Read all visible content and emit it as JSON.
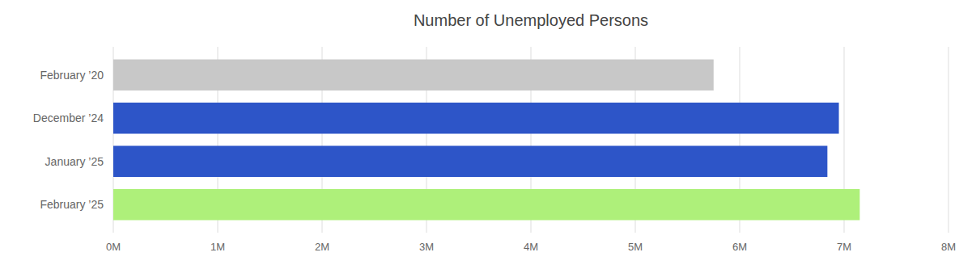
{
  "chart_data": {
    "type": "bar",
    "orientation": "horizontal",
    "title": "Number of Unemployed Persons",
    "categories": [
      "February ’20",
      "December ’24",
      "January ’25",
      "February ’25"
    ],
    "values": [
      5750000,
      6950000,
      6840000,
      7150000
    ],
    "colors": [
      "#c8c8c8",
      "#2d55c8",
      "#2d55c8",
      "#aef07a"
    ],
    "xlim": [
      0,
      8000000
    ],
    "xticks": [
      {
        "value": 0,
        "label": "0M"
      },
      {
        "value": 1000000,
        "label": "1M"
      },
      {
        "value": 2000000,
        "label": "2M"
      },
      {
        "value": 3000000,
        "label": "3M"
      },
      {
        "value": 4000000,
        "label": "4M"
      },
      {
        "value": 5000000,
        "label": "5M"
      },
      {
        "value": 6000000,
        "label": "6M"
      },
      {
        "value": 7000000,
        "label": "7M"
      },
      {
        "value": 8000000,
        "label": "8M"
      }
    ],
    "grid": true
  }
}
